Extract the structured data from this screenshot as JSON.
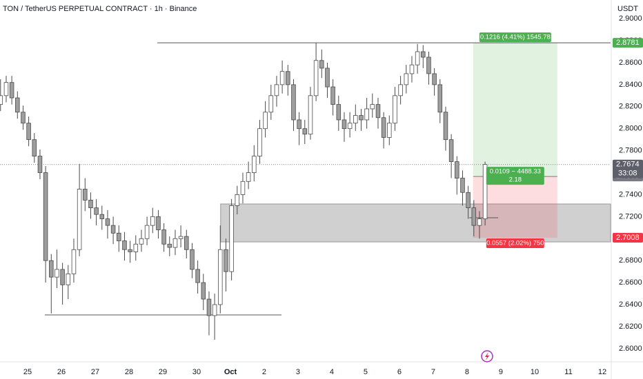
{
  "chart_data": {
    "type": "candlestick",
    "title": "TON / TetherUS PERPETUAL CONTRACT · 1h · Binance",
    "currency": "USDT",
    "x": [
      -0.8,
      -0.633,
      -0.467,
      -0.3,
      -0.133,
      0.033,
      0.2,
      0.367,
      0.533,
      0.7,
      0.867,
      1.033,
      1.2,
      1.367,
      1.533,
      1.7,
      1.867,
      2.033,
      2.2,
      2.367,
      2.533,
      2.7,
      2.867,
      3.033,
      3.2,
      3.367,
      3.533,
      3.7,
      3.867,
      4.033,
      4.2,
      4.367,
      4.533,
      4.7,
      4.867,
      5.033,
      5.2,
      5.367,
      5.533,
      5.7,
      5.867,
      6.033,
      6.2,
      6.367,
      6.533,
      6.7,
      6.867,
      7.033,
      7.2,
      7.367,
      7.533,
      7.7,
      7.867,
      8.033,
      8.2,
      8.367,
      8.533,
      8.7,
      8.867,
      9.033,
      9.2,
      9.367,
      9.533,
      9.7,
      9.867,
      10.033,
      10.2,
      10.367,
      10.533,
      10.7,
      10.867,
      11.033,
      11.2,
      11.367,
      11.533,
      11.7,
      11.867,
      12.033,
      12.2,
      12.367,
      12.533,
      12.7,
      12.867,
      13.033,
      13.2,
      13.367,
      13.533
    ],
    "ohlc": [
      [
        2.822,
        2.845,
        2.816,
        2.83
      ],
      [
        2.83,
        2.848,
        2.824,
        2.842
      ],
      [
        2.842,
        2.848,
        2.822,
        2.828
      ],
      [
        2.828,
        2.834,
        2.809,
        2.815
      ],
      [
        2.815,
        2.821,
        2.799,
        2.805
      ],
      [
        2.805,
        2.811,
        2.784,
        2.79
      ],
      [
        2.79,
        2.796,
        2.769,
        2.775
      ],
      [
        2.775,
        2.781,
        2.754,
        2.76
      ],
      [
        2.76,
        2.766,
        2.66,
        2.68
      ],
      [
        2.68,
        2.686,
        2.632,
        2.665
      ],
      [
        2.665,
        2.69,
        2.655,
        2.672
      ],
      [
        2.672,
        2.678,
        2.64,
        2.658
      ],
      [
        2.658,
        2.676,
        2.645,
        2.668
      ],
      [
        2.668,
        2.7,
        2.66,
        2.69
      ],
      [
        2.69,
        2.768,
        2.684,
        2.745
      ],
      [
        2.745,
        2.755,
        2.725,
        2.735
      ],
      [
        2.735,
        2.742,
        2.718,
        2.728
      ],
      [
        2.728,
        2.736,
        2.712,
        2.722
      ],
      [
        2.722,
        2.73,
        2.708,
        2.718
      ],
      [
        2.718,
        2.726,
        2.7,
        2.712
      ],
      [
        2.712,
        2.72,
        2.695,
        2.705
      ],
      [
        2.705,
        2.712,
        2.688,
        2.698
      ],
      [
        2.698,
        2.706,
        2.68,
        2.69
      ],
      [
        2.69,
        2.698,
        2.678,
        2.688
      ],
      [
        2.688,
        2.703,
        2.68,
        2.695
      ],
      [
        2.695,
        2.708,
        2.688,
        2.7
      ],
      [
        2.7,
        2.72,
        2.694,
        2.712
      ],
      [
        2.712,
        2.728,
        2.705,
        2.72
      ],
      [
        2.72,
        2.726,
        2.7,
        2.708
      ],
      [
        2.708,
        2.714,
        2.688,
        2.695
      ],
      [
        2.695,
        2.702,
        2.684,
        2.692
      ],
      [
        2.692,
        2.708,
        2.685,
        2.7
      ],
      [
        2.7,
        2.712,
        2.692,
        2.702
      ],
      [
        2.702,
        2.708,
        2.682,
        2.69
      ],
      [
        2.69,
        2.696,
        2.664,
        2.672
      ],
      [
        2.672,
        2.68,
        2.65,
        2.66
      ],
      [
        2.66,
        2.668,
        2.635,
        2.645
      ],
      [
        2.645,
        2.652,
        2.612,
        2.63
      ],
      [
        2.63,
        2.65,
        2.608,
        2.64
      ],
      [
        2.64,
        2.712,
        2.632,
        2.69
      ],
      [
        2.69,
        2.7,
        2.652,
        2.67
      ],
      [
        2.67,
        2.736,
        2.662,
        2.73
      ],
      [
        2.73,
        2.748,
        2.722,
        2.74
      ],
      [
        2.74,
        2.76,
        2.732,
        2.752
      ],
      [
        2.752,
        2.77,
        2.745,
        2.76
      ],
      [
        2.76,
        2.785,
        2.752,
        2.775
      ],
      [
        2.775,
        2.808,
        2.768,
        2.8
      ],
      [
        2.8,
        2.825,
        2.792,
        2.815
      ],
      [
        2.815,
        2.84,
        2.808,
        2.83
      ],
      [
        2.83,
        2.848,
        2.82,
        2.84
      ],
      [
        2.84,
        2.862,
        2.832,
        2.852
      ],
      [
        2.852,
        2.858,
        2.83,
        2.84
      ],
      [
        2.84,
        2.845,
        2.798,
        2.808
      ],
      [
        2.808,
        2.815,
        2.785,
        2.8
      ],
      [
        2.8,
        2.808,
        2.786,
        2.795
      ],
      [
        2.795,
        2.838,
        2.79,
        2.83
      ],
      [
        2.83,
        2.878,
        2.825,
        2.862
      ],
      [
        2.862,
        2.872,
        2.846,
        2.855
      ],
      [
        2.855,
        2.86,
        2.828,
        2.838
      ],
      [
        2.838,
        2.845,
        2.812,
        2.822
      ],
      [
        2.822,
        2.83,
        2.798,
        2.808
      ],
      [
        2.808,
        2.815,
        2.788,
        2.8
      ],
      [
        2.8,
        2.815,
        2.792,
        2.805
      ],
      [
        2.805,
        2.822,
        2.798,
        2.812
      ],
      [
        2.812,
        2.818,
        2.798,
        2.808
      ],
      [
        2.808,
        2.828,
        2.8,
        2.818
      ],
      [
        2.818,
        2.832,
        2.81,
        2.822
      ],
      [
        2.822,
        2.828,
        2.8,
        2.81
      ],
      [
        2.81,
        2.815,
        2.782,
        2.792
      ],
      [
        2.792,
        2.812,
        2.785,
        2.805
      ],
      [
        2.805,
        2.838,
        2.798,
        2.83
      ],
      [
        2.83,
        2.848,
        2.822,
        2.84
      ],
      [
        2.84,
        2.858,
        2.832,
        2.85
      ],
      [
        2.85,
        2.866,
        2.842,
        2.858
      ],
      [
        2.858,
        2.877,
        2.85,
        2.87
      ],
      [
        2.87,
        2.876,
        2.855,
        2.865
      ],
      [
        2.865,
        2.87,
        2.84,
        2.85
      ],
      [
        2.85,
        2.855,
        2.83,
        2.84
      ],
      [
        2.84,
        2.845,
        2.805,
        2.815
      ],
      [
        2.815,
        2.82,
        2.78,
        2.79
      ],
      [
        2.79,
        2.795,
        2.755,
        2.77
      ],
      [
        2.77,
        2.775,
        2.74,
        2.755
      ],
      [
        2.755,
        2.762,
        2.73,
        2.742
      ],
      [
        2.742,
        2.748,
        2.718,
        2.728
      ],
      [
        2.728,
        2.735,
        2.702,
        2.712
      ],
      [
        2.712,
        2.725,
        2.7,
        2.718
      ],
      [
        2.718,
        2.77,
        2.712,
        2.7674
      ]
    ],
    "up_color": "#ffffff",
    "down_color": "#9e9e9e",
    "wick_color": "#4a4a4a",
    "xlim": [
      -0.816,
      17.245
    ],
    "ylim": [
      2.588,
      2.917
    ],
    "xticks": [
      {
        "value": 0,
        "label": "25"
      },
      {
        "value": 1,
        "label": "26"
      },
      {
        "value": 2,
        "label": "27"
      },
      {
        "value": 3,
        "label": "28"
      },
      {
        "value": 4,
        "label": "29"
      },
      {
        "value": 5,
        "label": "30"
      },
      {
        "value": 6,
        "label": "Oct"
      },
      {
        "value": 7,
        "label": "2"
      },
      {
        "value": 8,
        "label": "3"
      },
      {
        "value": 9,
        "label": "4"
      },
      {
        "value": 10,
        "label": "5"
      },
      {
        "value": 11,
        "label": "6"
      },
      {
        "value": 12,
        "label": "7"
      },
      {
        "value": 13,
        "label": "8"
      },
      {
        "value": 14,
        "label": "9"
      },
      {
        "value": 15,
        "label": "10"
      },
      {
        "value": 16,
        "label": "11"
      },
      {
        "value": 17,
        "label": "12"
      }
    ],
    "yticks": [
      {
        "value": 2.6,
        "label": "2.6000"
      },
      {
        "value": 2.62,
        "label": "2.6200"
      },
      {
        "value": 2.64,
        "label": "2.6400"
      },
      {
        "value": 2.66,
        "label": "2.6600"
      },
      {
        "value": 2.68,
        "label": "2.6800"
      },
      {
        "value": 2.7,
        "label": "2.7000"
      },
      {
        "value": 2.72,
        "label": "2.7200"
      },
      {
        "value": 2.74,
        "label": "2.7400"
      },
      {
        "value": 2.76,
        "label": "2.7600"
      },
      {
        "value": 2.78,
        "label": "2.7800"
      },
      {
        "value": 2.8,
        "label": "2.8000"
      },
      {
        "value": 2.82,
        "label": "2.8200"
      },
      {
        "value": 2.84,
        "label": "2.8400"
      },
      {
        "value": 2.86,
        "label": "2.8600"
      },
      {
        "value": 2.88,
        "label": "2.8800"
      },
      {
        "value": 2.9,
        "label": "2.9000"
      }
    ],
    "last_price": 2.7674,
    "countdown": "33:08",
    "position": {
      "x": [
        13.18,
        15.67
      ],
      "target": 2.8781,
      "entry": 2.7565,
      "stop": 2.7008,
      "target_label": "0.1216 (4.41%) 1545.78",
      "entry_label": "0.0109 − 4488.33",
      "ratio_label": "2.18",
      "stop_label": "0.0557 (2.02%) 750"
    },
    "zone": {
      "x": [
        5.71,
        17.245
      ],
      "price": [
        2.697,
        2.7315
      ]
    },
    "lines": [
      {
        "price": 2.8781,
        "x": [
          3.84,
          17.245
        ]
      },
      {
        "price": 2.6306,
        "x": [
          0.51,
          7.51
        ]
      },
      {
        "price": 2.719,
        "x": [
          13.06,
          13.92
        ]
      }
    ]
  }
}
